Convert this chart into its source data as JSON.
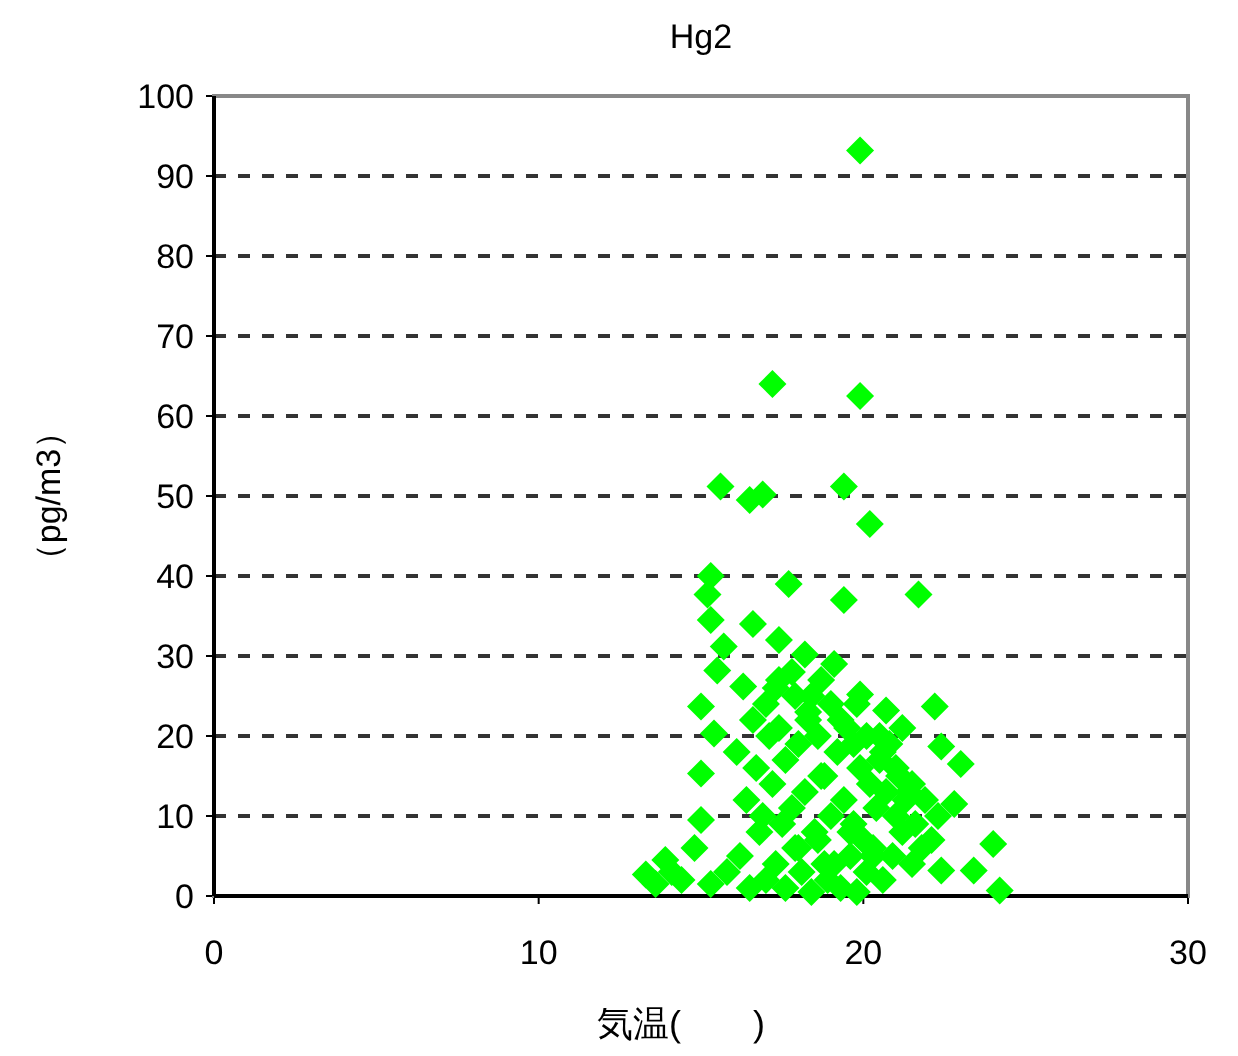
{
  "chart_data": {
    "type": "scatter",
    "title": "Hg2",
    "xlabel": "気温(　　)",
    "ylabel": "（pg/m3）",
    "xlim": [
      0,
      30
    ],
    "xticks": [
      0,
      10,
      20,
      30
    ],
    "ylim": [
      0,
      100
    ],
    "yticks": [
      0,
      10,
      20,
      30,
      40,
      50,
      60,
      70,
      80,
      90,
      100
    ],
    "grid": "y",
    "marker": "diamond",
    "series": [
      {
        "color": "#00ff00",
        "x": [
          19.9,
          17.2,
          19.9,
          15.6,
          16.5,
          16.9,
          19.4,
          20.2,
          15.3,
          15.2,
          17.7,
          19.4,
          21.7,
          15.3,
          16.6,
          17.4,
          18.2,
          15.7,
          15.5,
          16.3,
          17.4,
          18.7,
          19.9,
          20.7,
          22.2,
          15.0,
          15.4,
          15.0,
          22.4,
          23.0,
          22.8,
          24.0,
          24.2,
          22.4,
          23.4,
          13.3,
          13.9,
          15.0,
          14.4,
          13.6,
          14.1,
          14.8,
          15.3,
          15.8,
          16.2,
          16.5,
          16.8,
          17.0,
          17.3,
          17.6,
          17.9,
          18.1,
          18.4,
          18.6,
          18.9,
          19.1,
          19.3,
          19.6,
          19.8,
          20.1,
          20.3,
          20.6,
          20.9,
          21.2,
          21.5,
          21.8,
          22.1,
          16.4,
          16.9,
          17.2,
          17.5,
          17.8,
          18.2,
          18.5,
          18.8,
          19.0,
          19.4,
          19.7,
          20.0,
          20.4,
          20.7,
          21.0,
          21.3,
          21.6,
          16.1,
          16.7,
          17.1,
          17.6,
          18.0,
          18.3,
          18.7,
          19.2,
          19.5,
          19.9,
          20.2,
          20.5,
          20.8,
          21.1,
          21.4,
          21.9,
          22.3,
          16.6,
          17.0,
          17.4,
          17.9,
          18.3,
          18.6,
          19.0,
          19.3,
          19.7,
          20.1,
          20.6,
          21.0,
          21.5,
          17.3,
          17.8,
          18.4,
          19.1,
          19.8,
          20.5,
          21.2,
          18.0,
          18.8,
          19.6,
          20.3
        ],
        "values": [
          93.2,
          64,
          62.5,
          51.2,
          49.5,
          50.2,
          51.2,
          46.5,
          40,
          37.7,
          39,
          37,
          37.7,
          34.5,
          34,
          32,
          30.2,
          31.2,
          28.2,
          26.2,
          27,
          27,
          25.2,
          23.2,
          23.7,
          23.7,
          20.3,
          15.3,
          18.7,
          16.5,
          11.5,
          6.5,
          0.7,
          3.2,
          3.2,
          2.7,
          4.5,
          9.5,
          2,
          1.5,
          3,
          6,
          1.5,
          3,
          5,
          1,
          8,
          2,
          4,
          1,
          6,
          3,
          0.5,
          7,
          2,
          4,
          1,
          5,
          0.5,
          3,
          6,
          2,
          5,
          8,
          4,
          6,
          7,
          12,
          10,
          14,
          9,
          11,
          13,
          8,
          15,
          10,
          12,
          9,
          7,
          11,
          13,
          10,
          12,
          9,
          18,
          16,
          20,
          17,
          19,
          22,
          15,
          18,
          21,
          16,
          14,
          17,
          19,
          15,
          13,
          12,
          10,
          22,
          24,
          21,
          25,
          23,
          20,
          24,
          22,
          19,
          20,
          18,
          16,
          14,
          26,
          28,
          25,
          29,
          24,
          20,
          21,
          6,
          4,
          8,
          5
        ]
      }
    ]
  }
}
